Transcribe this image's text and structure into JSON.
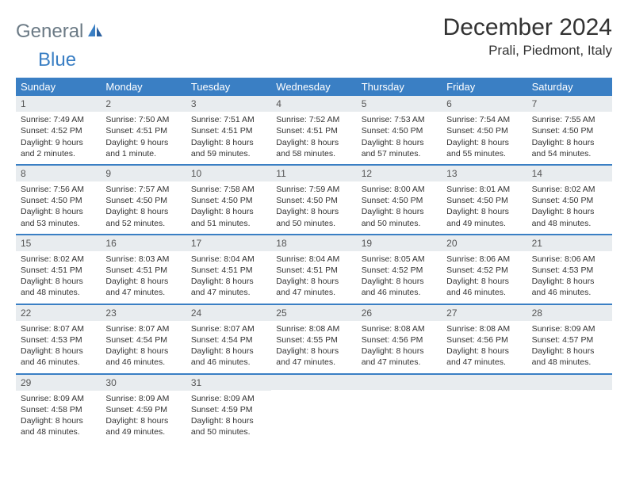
{
  "logo": {
    "general": "General",
    "blue": "Blue"
  },
  "title": "December 2024",
  "location": "Prali, Piedmont, Italy",
  "colors": {
    "header_bg": "#3a7fc4",
    "daynum_bg": "#e8ecef",
    "rule": "#3a7fc4",
    "text": "#333333"
  },
  "weekdays": [
    "Sunday",
    "Monday",
    "Tuesday",
    "Wednesday",
    "Thursday",
    "Friday",
    "Saturday"
  ],
  "weeks": [
    [
      {
        "n": "1",
        "sr": "7:49 AM",
        "ss": "4:52 PM",
        "dl": "9 hours and 2 minutes."
      },
      {
        "n": "2",
        "sr": "7:50 AM",
        "ss": "4:51 PM",
        "dl": "9 hours and 1 minute."
      },
      {
        "n": "3",
        "sr": "7:51 AM",
        "ss": "4:51 PM",
        "dl": "8 hours and 59 minutes."
      },
      {
        "n": "4",
        "sr": "7:52 AM",
        "ss": "4:51 PM",
        "dl": "8 hours and 58 minutes."
      },
      {
        "n": "5",
        "sr": "7:53 AM",
        "ss": "4:50 PM",
        "dl": "8 hours and 57 minutes."
      },
      {
        "n": "6",
        "sr": "7:54 AM",
        "ss": "4:50 PM",
        "dl": "8 hours and 55 minutes."
      },
      {
        "n": "7",
        "sr": "7:55 AM",
        "ss": "4:50 PM",
        "dl": "8 hours and 54 minutes."
      }
    ],
    [
      {
        "n": "8",
        "sr": "7:56 AM",
        "ss": "4:50 PM",
        "dl": "8 hours and 53 minutes."
      },
      {
        "n": "9",
        "sr": "7:57 AM",
        "ss": "4:50 PM",
        "dl": "8 hours and 52 minutes."
      },
      {
        "n": "10",
        "sr": "7:58 AM",
        "ss": "4:50 PM",
        "dl": "8 hours and 51 minutes."
      },
      {
        "n": "11",
        "sr": "7:59 AM",
        "ss": "4:50 PM",
        "dl": "8 hours and 50 minutes."
      },
      {
        "n": "12",
        "sr": "8:00 AM",
        "ss": "4:50 PM",
        "dl": "8 hours and 50 minutes."
      },
      {
        "n": "13",
        "sr": "8:01 AM",
        "ss": "4:50 PM",
        "dl": "8 hours and 49 minutes."
      },
      {
        "n": "14",
        "sr": "8:02 AM",
        "ss": "4:50 PM",
        "dl": "8 hours and 48 minutes."
      }
    ],
    [
      {
        "n": "15",
        "sr": "8:02 AM",
        "ss": "4:51 PM",
        "dl": "8 hours and 48 minutes."
      },
      {
        "n": "16",
        "sr": "8:03 AM",
        "ss": "4:51 PM",
        "dl": "8 hours and 47 minutes."
      },
      {
        "n": "17",
        "sr": "8:04 AM",
        "ss": "4:51 PM",
        "dl": "8 hours and 47 minutes."
      },
      {
        "n": "18",
        "sr": "8:04 AM",
        "ss": "4:51 PM",
        "dl": "8 hours and 47 minutes."
      },
      {
        "n": "19",
        "sr": "8:05 AM",
        "ss": "4:52 PM",
        "dl": "8 hours and 46 minutes."
      },
      {
        "n": "20",
        "sr": "8:06 AM",
        "ss": "4:52 PM",
        "dl": "8 hours and 46 minutes."
      },
      {
        "n": "21",
        "sr": "8:06 AM",
        "ss": "4:53 PM",
        "dl": "8 hours and 46 minutes."
      }
    ],
    [
      {
        "n": "22",
        "sr": "8:07 AM",
        "ss": "4:53 PM",
        "dl": "8 hours and 46 minutes."
      },
      {
        "n": "23",
        "sr": "8:07 AM",
        "ss": "4:54 PM",
        "dl": "8 hours and 46 minutes."
      },
      {
        "n": "24",
        "sr": "8:07 AM",
        "ss": "4:54 PM",
        "dl": "8 hours and 46 minutes."
      },
      {
        "n": "25",
        "sr": "8:08 AM",
        "ss": "4:55 PM",
        "dl": "8 hours and 47 minutes."
      },
      {
        "n": "26",
        "sr": "8:08 AM",
        "ss": "4:56 PM",
        "dl": "8 hours and 47 minutes."
      },
      {
        "n": "27",
        "sr": "8:08 AM",
        "ss": "4:56 PM",
        "dl": "8 hours and 47 minutes."
      },
      {
        "n": "28",
        "sr": "8:09 AM",
        "ss": "4:57 PM",
        "dl": "8 hours and 48 minutes."
      }
    ],
    [
      {
        "n": "29",
        "sr": "8:09 AM",
        "ss": "4:58 PM",
        "dl": "8 hours and 48 minutes."
      },
      {
        "n": "30",
        "sr": "8:09 AM",
        "ss": "4:59 PM",
        "dl": "8 hours and 49 minutes."
      },
      {
        "n": "31",
        "sr": "8:09 AM",
        "ss": "4:59 PM",
        "dl": "8 hours and 50 minutes."
      },
      null,
      null,
      null,
      null
    ]
  ],
  "labels": {
    "sunrise": "Sunrise: ",
    "sunset": "Sunset: ",
    "daylight": "Daylight: "
  }
}
